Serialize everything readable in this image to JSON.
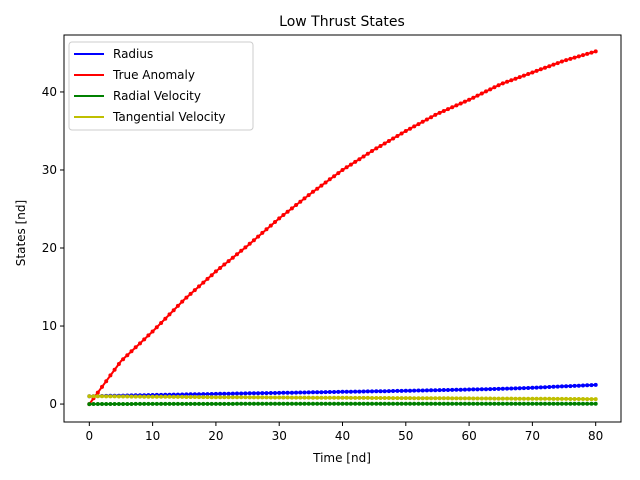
{
  "chart_data": {
    "type": "line",
    "title": "Low Thrust States",
    "xlabel": "Time [nd]",
    "ylabel": "States [nd]",
    "xlim": [
      -4,
      84
    ],
    "ylim": [
      -2.3,
      47.3
    ],
    "xticks": [
      0,
      10,
      20,
      30,
      40,
      50,
      60,
      70,
      80
    ],
    "yticks": [
      0,
      10,
      20,
      30,
      40
    ],
    "grid": false,
    "legend_position": "top-left",
    "x": [
      0,
      5,
      10,
      15,
      20,
      25,
      30,
      35,
      40,
      45,
      50,
      55,
      60,
      65,
      70,
      75,
      80
    ],
    "series": [
      {
        "name": "Radius",
        "color": "#0000ff",
        "values": [
          1.0,
          1.08,
          1.16,
          1.23,
          1.3,
          1.37,
          1.43,
          1.5,
          1.57,
          1.63,
          1.7,
          1.78,
          1.86,
          1.95,
          2.08,
          2.27,
          2.45
        ]
      },
      {
        "name": "True Anomaly",
        "color": "#ff0000",
        "values": [
          0,
          5.5,
          9.3,
          13.4,
          17.0,
          20.3,
          23.8,
          27.0,
          30.0,
          32.6,
          35.0,
          37.2,
          39.0,
          41.0,
          42.5,
          44.0,
          45.2
        ]
      },
      {
        "name": "Radial Velocity",
        "color": "#008000",
        "values": [
          0,
          0.01,
          0.02,
          0.02,
          0.02,
          0.03,
          0.03,
          0.03,
          0.03,
          0.04,
          0.04,
          0.04,
          0.04,
          0.05,
          0.05,
          0.05,
          0.05
        ]
      },
      {
        "name": "Tangential Velocity",
        "color": "#bfbf00",
        "values": [
          1.0,
          0.97,
          0.94,
          0.91,
          0.88,
          0.86,
          0.84,
          0.82,
          0.8,
          0.78,
          0.76,
          0.74,
          0.72,
          0.7,
          0.68,
          0.66,
          0.63
        ]
      }
    ]
  }
}
